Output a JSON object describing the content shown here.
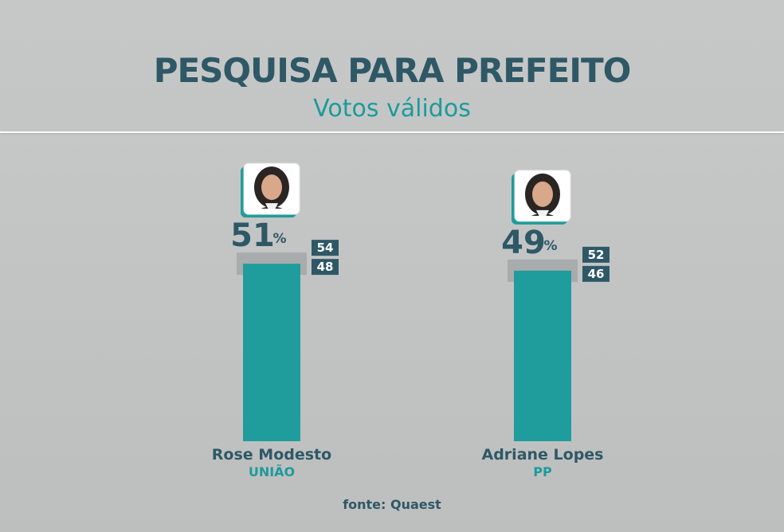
{
  "header": {
    "title": "PESQUISA PARA PREFEITO",
    "subtitle": "Votos válidos"
  },
  "source": "fonte: Quaest",
  "colors": {
    "bar": "#1f9c9c",
    "text_dark": "#2f5866",
    "accent": "#1e9a9a",
    "range_band": "#a6a8a8",
    "range_box": "#2f5866"
  },
  "chart_data": {
    "type": "bar",
    "categories": [
      "Rose Modesto",
      "Adriane Lopes"
    ],
    "parties": [
      "UNIÃO",
      "PP"
    ],
    "values": [
      51,
      49
    ],
    "value_suffix": "%",
    "upper": [
      54,
      52
    ],
    "lower": [
      48,
      46
    ],
    "title": "PESQUISA PARA PREFEITO",
    "subtitle": "Votos válidos",
    "ylim": [
      0,
      100
    ],
    "grid": false,
    "legend": "none"
  }
}
